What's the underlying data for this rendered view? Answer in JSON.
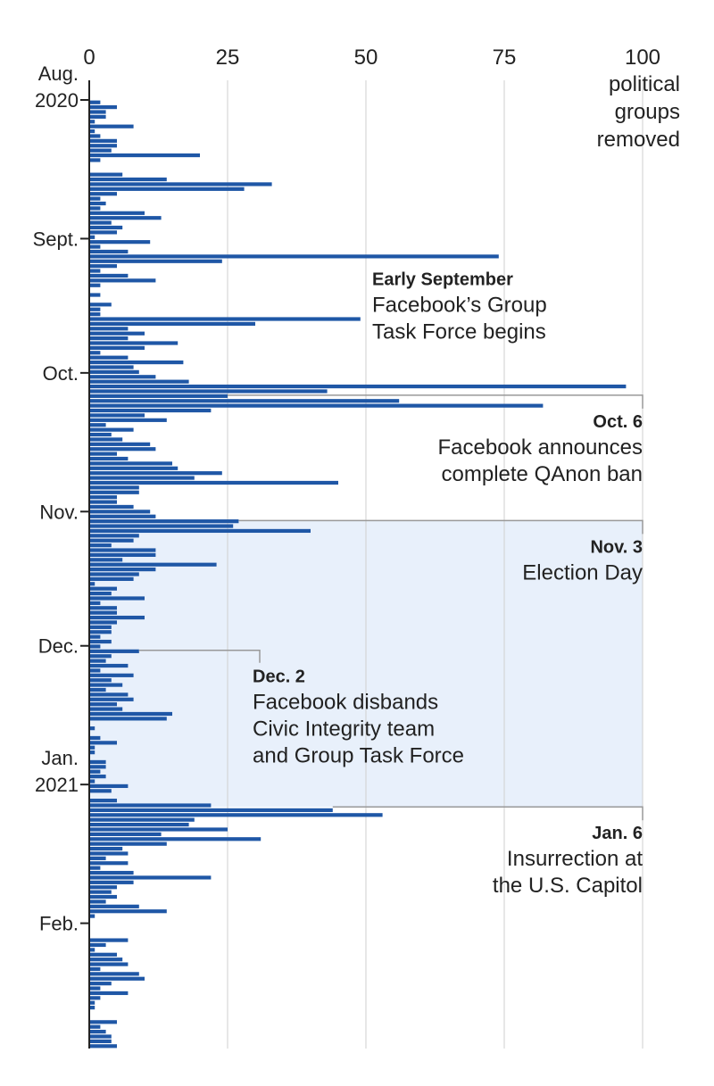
{
  "chart_data": {
    "type": "bar",
    "orientation": "horizontal",
    "x_axis_ticks": [
      "0",
      "25",
      "50",
      "75",
      "100"
    ],
    "xlim": [
      0,
      100
    ],
    "unit_label": [
      "political",
      "groups",
      "removed"
    ],
    "grid": true,
    "bar_color": "#1f57a6",
    "highlight_color": "#e8f0fb",
    "connector_color": "#999999",
    "date_range": [
      "2020-08-01",
      "2021-02-28"
    ],
    "highlight_range": [
      "2020-11-03",
      "2021-01-06"
    ],
    "month_labels": [
      {
        "date": "2020-08-01",
        "lines": [
          "Aug.",
          "2020"
        ]
      },
      {
        "date": "2020-09-01",
        "lines": [
          "Sept."
        ]
      },
      {
        "date": "2020-10-01",
        "lines": [
          "Oct."
        ]
      },
      {
        "date": "2020-11-01",
        "lines": [
          "Nov."
        ]
      },
      {
        "date": "2020-12-01",
        "lines": [
          "Dec."
        ]
      },
      {
        "date": "2021-01-01",
        "lines": [
          "Jan.",
          "2021"
        ]
      },
      {
        "date": "2021-02-01",
        "lines": [
          "Feb."
        ]
      }
    ],
    "annotations": [
      {
        "date": "2020-09-05",
        "title": "Early September",
        "lines": [
          "Facebook’s Group",
          "Task Force begins"
        ],
        "align": "left",
        "connector": false
      },
      {
        "date": "2020-10-06",
        "title": "Oct. 6",
        "lines": [
          "Facebook announces",
          "complete QAnon ban"
        ],
        "align": "right",
        "connector": true
      },
      {
        "date": "2020-11-03",
        "title": "Nov. 3",
        "lines": [
          "Election Day"
        ],
        "align": "right",
        "connector": true
      },
      {
        "date": "2020-12-02",
        "title": "Dec. 2",
        "lines": [
          "Facebook disbands",
          "Civic Integrity team",
          "and Group Task Force"
        ],
        "align": "left",
        "connector": true
      },
      {
        "date": "2021-01-06",
        "title": "Jan. 6",
        "lines": [
          "Insurrection at",
          "the U.S. Capitol"
        ],
        "align": "right",
        "connector": true
      }
    ],
    "values": [
      2,
      5,
      3,
      3,
      1,
      8,
      1,
      2,
      5,
      5,
      4,
      20,
      2,
      0,
      0,
      6,
      14,
      33,
      28,
      5,
      2,
      3,
      2,
      10,
      13,
      4,
      6,
      5,
      1,
      11,
      2,
      7,
      74,
      24,
      5,
      2,
      7,
      12,
      2,
      0,
      2,
      0,
      4,
      2,
      2,
      49,
      30,
      7,
      10,
      7,
      16,
      10,
      2,
      7,
      17,
      8,
      9,
      12,
      18,
      97,
      43,
      25,
      56,
      82,
      22,
      10,
      14,
      3,
      8,
      4,
      6,
      11,
      12,
      5,
      7,
      15,
      16,
      24,
      19,
      45,
      9,
      9,
      5,
      5,
      8,
      11,
      12,
      27,
      26,
      40,
      9,
      8,
      4,
      12,
      12,
      6,
      23,
      12,
      9,
      8,
      1,
      5,
      4,
      10,
      2,
      5,
      5,
      10,
      5,
      4,
      4,
      2,
      4,
      2,
      9,
      4,
      3,
      7,
      2,
      8,
      4,
      6,
      3,
      7,
      8,
      5,
      6,
      15,
      14,
      0,
      1,
      0,
      2,
      5,
      1,
      1,
      0,
      3,
      3,
      2,
      3,
      1,
      7,
      4,
      0,
      5,
      22,
      44,
      53,
      19,
      18,
      25,
      13,
      31,
      14,
      6,
      7,
      3,
      7,
      2,
      8,
      22,
      8,
      5,
      4,
      5,
      3,
      9,
      14,
      1,
      0,
      0,
      0,
      0,
      7,
      3,
      1,
      5,
      6,
      7,
      2,
      9,
      10,
      4,
      2,
      7,
      2,
      1,
      1,
      0,
      0,
      5,
      2,
      3,
      4,
      4,
      5
    ]
  }
}
